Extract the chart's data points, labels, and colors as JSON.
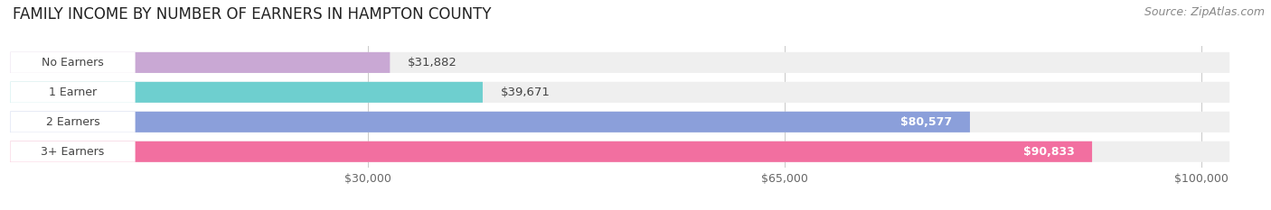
{
  "title": "FAMILY INCOME BY NUMBER OF EARNERS IN HAMPTON COUNTY",
  "source": "Source: ZipAtlas.com",
  "categories": [
    "No Earners",
    "1 Earner",
    "2 Earners",
    "3+ Earners"
  ],
  "values": [
    31882,
    39671,
    80577,
    90833
  ],
  "bar_colors": [
    "#c9a8d4",
    "#6ecfcf",
    "#8b9fda",
    "#f26fa0"
  ],
  "value_labels": [
    "$31,882",
    "$39,671",
    "$80,577",
    "$90,833"
  ],
  "x_ticks": [
    30000,
    65000,
    100000
  ],
  "x_tick_labels": [
    "$30,000",
    "$65,000",
    "$100,000"
  ],
  "x_min": 0,
  "x_max": 105000,
  "background_color": "#ffffff",
  "bar_bg_color": "#efefef",
  "title_fontsize": 12,
  "source_fontsize": 9,
  "tick_fontsize": 9,
  "bar_label_fontsize": 9,
  "label_threshold": 55000
}
